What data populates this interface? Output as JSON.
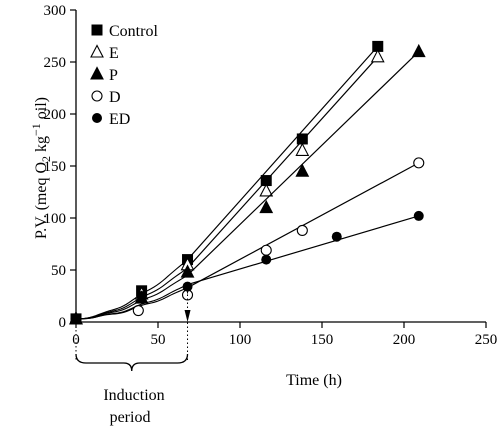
{
  "chart_data": {
    "type": "scatter",
    "xlabel": "Time (h)",
    "ylabel_main": "P.V. (meq O",
    "ylabel_sub": "2",
    "ylabel_mid": " kg",
    "ylabel_sup": "−1",
    "ylabel_end": " oil)",
    "xlim": [
      0,
      250
    ],
    "ylim": [
      0,
      300
    ],
    "xticks": [
      "0",
      "50",
      "100",
      "150",
      "200",
      "250"
    ],
    "yticks": [
      "0",
      "50",
      "100",
      "150",
      "200",
      "250",
      "300"
    ],
    "legend_position": "top-left",
    "annotation": {
      "line1": "Induction",
      "line2": "period",
      "x_start": 0,
      "x_end": 68
    },
    "series": [
      {
        "name": "Control",
        "marker": "square-filled",
        "x": [
          0,
          40,
          68,
          116,
          138,
          184
        ],
        "y": [
          3,
          30,
          60,
          136,
          176,
          265
        ],
        "fit": [
          [
            68,
            60
          ],
          [
            184,
            265
          ]
        ]
      },
      {
        "name": "E",
        "marker": "triangle-open",
        "x": [
          0,
          40,
          68,
          116,
          138,
          184
        ],
        "y": [
          3,
          27,
          55,
          126,
          165,
          255
        ],
        "fit": [
          [
            68,
            52
          ],
          [
            184,
            255
          ]
        ]
      },
      {
        "name": "P",
        "marker": "triangle-filled",
        "x": [
          0,
          40,
          68,
          116,
          138,
          209
        ],
        "y": [
          3,
          23,
          48,
          110,
          145,
          260
        ],
        "fit": [
          [
            68,
            45
          ],
          [
            209,
            260
          ]
        ]
      },
      {
        "name": "D",
        "marker": "circle-open",
        "x": [
          0,
          38,
          68,
          116,
          138,
          209
        ],
        "y": [
          3,
          11,
          26,
          69,
          88,
          153
        ],
        "fit": [
          [
            68,
            33
          ],
          [
            209,
            153
          ]
        ]
      },
      {
        "name": "ED",
        "marker": "circle-filled",
        "x": [
          0,
          40,
          68,
          116,
          159,
          209
        ],
        "y": [
          3,
          25,
          34,
          60,
          82,
          102
        ],
        "fit": [
          [
            68,
            36
          ],
          [
            209,
            102
          ]
        ]
      }
    ]
  }
}
